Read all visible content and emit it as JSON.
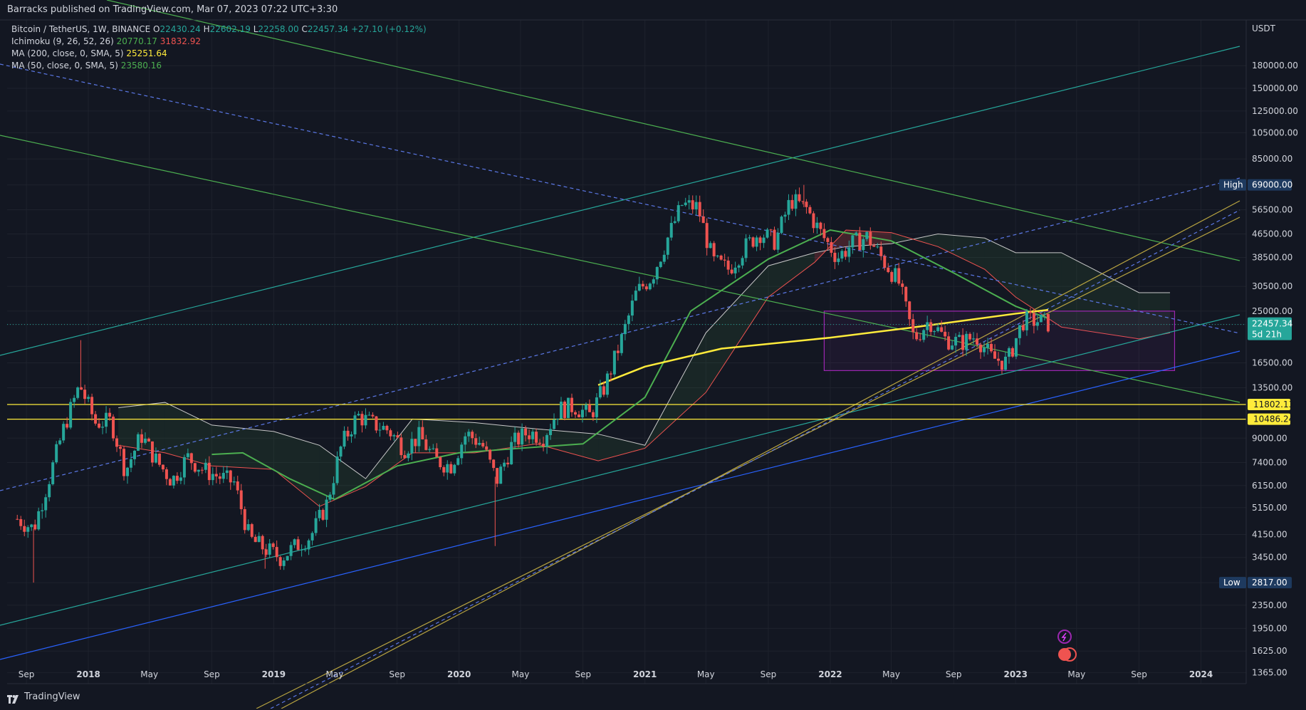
{
  "header": {
    "text": "Barracks published on TradingView.com, Mar 07, 2023 07:22 UTC+3:30"
  },
  "footer": {
    "brand": "TradingView"
  },
  "legend": {
    "symbol": "Bitcoin / TetherUS, 1W, BINANCE",
    "ohlc": {
      "o_label": "O",
      "o": "22430.24",
      "h_label": "H",
      "h": "22602.19",
      "l_label": "L",
      "l": "22258.00",
      "c_label": "C",
      "c": "22457.34",
      "chg": "+27.10 (+0.12%)"
    },
    "ichimoku": {
      "label": "Ichimoku (9, 26, 52, 26)",
      "v1": "20770.17",
      "v2": "31832.92"
    },
    "ma200": {
      "label": "MA (200, close, 0, SMA, 5)",
      "value": "25251.64"
    },
    "ma50": {
      "label": "MA (50, close, 0, SMA, 5)",
      "value": "23580.16"
    }
  },
  "colors": {
    "background": "#131722",
    "grid": "#1e222d",
    "up": "#26a69a",
    "down": "#ef5350",
    "ma200": "#ffeb3b",
    "ma50": "#4caf50",
    "text": "#d1d4dc",
    "price_tag": "#26a69a",
    "level_tag": "#ffeb3b",
    "high_low_tag": "#1e3a5f"
  },
  "chart_data": {
    "type": "candlestick",
    "scale": "log",
    "currency": "USDT",
    "ylim": [
      1250,
      260000
    ],
    "y_ticks": [
      "180000.00",
      "150000.00",
      "125000.00",
      "105000.00",
      "85000.00",
      "69000.00",
      "56500.00",
      "46500.00",
      "38500.00",
      "30500.00",
      "25000.00",
      "22457.34",
      "16500.00",
      "13500.00",
      "11802.13",
      "10486.24",
      "9000.00",
      "7400.00",
      "6150.00",
      "5150.00",
      "4150.00",
      "3450.00",
      "2817.00",
      "2350.00",
      "1950.00",
      "1625.00",
      "1365.00"
    ],
    "x_ticks": [
      "Sep",
      "2018",
      "May",
      "Sep",
      "2019",
      "May",
      "Sep",
      "2020",
      "May",
      "Sep",
      "2021",
      "May",
      "Sep",
      "2022",
      "May",
      "Sep",
      "2023",
      "May",
      "Sep",
      "2024"
    ],
    "x_tick_dates": [
      "2017-09-01",
      "2018-01-01",
      "2018-05-01",
      "2018-09-01",
      "2019-01-01",
      "2019-05-01",
      "2019-09-01",
      "2020-01-01",
      "2020-05-01",
      "2020-09-01",
      "2021-01-01",
      "2021-05-01",
      "2021-09-01",
      "2022-01-01",
      "2022-05-01",
      "2022-09-01",
      "2023-01-01",
      "2023-05-01",
      "2023-09-01",
      "2024-01-01"
    ],
    "xlim": [
      "2017-07-25",
      "2024-03-30"
    ],
    "last_price": {
      "value": "22457.34",
      "countdown": "5d 21h"
    },
    "high_marker": {
      "label": "High",
      "value": "69000.00"
    },
    "low_marker": {
      "label": "Low",
      "value": "2817.00"
    },
    "horizontal_levels": [
      "11802.13",
      "10486.24"
    ],
    "candles_monthly_close": [
      [
        "2017-08",
        4700
      ],
      [
        "2017-09",
        4340
      ],
      [
        "2017-10",
        6450
      ],
      [
        "2017-11",
        9950
      ],
      [
        "2017-12",
        13800
      ],
      [
        "2018-01",
        10200
      ],
      [
        "2018-02",
        10300
      ],
      [
        "2018-03",
        6900
      ],
      [
        "2018-04",
        9240
      ],
      [
        "2018-05",
        7500
      ],
      [
        "2018-06",
        6400
      ],
      [
        "2018-07",
        7730
      ],
      [
        "2018-08",
        7000
      ],
      [
        "2018-09",
        6600
      ],
      [
        "2018-10",
        6300
      ],
      [
        "2018-11",
        4000
      ],
      [
        "2018-12",
        3700
      ],
      [
        "2019-01",
        3440
      ],
      [
        "2019-02",
        3800
      ],
      [
        "2019-03",
        4100
      ],
      [
        "2019-04",
        5300
      ],
      [
        "2019-05",
        8570
      ],
      [
        "2019-06",
        10800
      ],
      [
        "2019-07",
        10100
      ],
      [
        "2019-08",
        9600
      ],
      [
        "2019-09",
        8300
      ],
      [
        "2019-10",
        9150
      ],
      [
        "2019-11",
        7550
      ],
      [
        "2019-12",
        7200
      ],
      [
        "2020-01",
        9350
      ],
      [
        "2020-02",
        8600
      ],
      [
        "2020-03",
        6400
      ],
      [
        "2020-04",
        8620
      ],
      [
        "2020-05",
        9450
      ],
      [
        "2020-06",
        9140
      ],
      [
        "2020-07",
        11350
      ],
      [
        "2020-08",
        11650
      ],
      [
        "2020-09",
        10780
      ],
      [
        "2020-10",
        13800
      ],
      [
        "2020-11",
        19700
      ],
      [
        "2020-12",
        29000
      ],
      [
        "2021-01",
        33100
      ],
      [
        "2021-02",
        45100
      ],
      [
        "2021-03",
        58800
      ],
      [
        "2021-04",
        57700
      ],
      [
        "2021-05",
        37300
      ],
      [
        "2021-06",
        35000
      ],
      [
        "2021-07",
        41500
      ],
      [
        "2021-08",
        47100
      ],
      [
        "2021-09",
        43800
      ],
      [
        "2021-10",
        61300
      ],
      [
        "2021-11",
        57000
      ],
      [
        "2021-12",
        46300
      ],
      [
        "2022-01",
        38500
      ],
      [
        "2022-02",
        43200
      ],
      [
        "2022-03",
        45500
      ],
      [
        "2022-04",
        37700
      ],
      [
        "2022-05",
        31800
      ],
      [
        "2022-06",
        19900
      ],
      [
        "2022-07",
        23300
      ],
      [
        "2022-08",
        20000
      ],
      [
        "2022-09",
        19400
      ],
      [
        "2022-10",
        20500
      ],
      [
        "2022-11",
        17150
      ],
      [
        "2022-12",
        16550
      ],
      [
        "2023-01",
        23100
      ],
      [
        "2023-02",
        23150
      ],
      [
        "2023-03",
        22457
      ]
    ],
    "extremes": {
      "high": [
        "2021-11-10",
        69000
      ],
      "low_2018": [
        "2018-12-15",
        3150
      ],
      "low_2020": [
        "2020-03-12",
        3780
      ],
      "first_low": [
        "2017-09-15",
        2817
      ],
      "high_2017": [
        "2017-12-17",
        19800
      ]
    },
    "ma200_points": [
      [
        "2020-10-01",
        13800
      ],
      [
        "2021-01-01",
        16000
      ],
      [
        "2021-06-01",
        18500
      ],
      [
        "2022-01-01",
        20200
      ],
      [
        "2022-06-01",
        21800
      ],
      [
        "2023-01-01",
        24500
      ],
      [
        "2023-03-06",
        25251
      ]
    ],
    "ma50_points": [
      [
        "2018-09-01",
        7900
      ],
      [
        "2018-11-01",
        8000
      ],
      [
        "2019-02-01",
        6500
      ],
      [
        "2019-05-01",
        5500
      ],
      [
        "2019-09-01",
        7200
      ],
      [
        "2020-01-01",
        8000
      ],
      [
        "2020-05-01",
        8300
      ],
      [
        "2020-09-01",
        8600
      ],
      [
        "2021-01-01",
        12500
      ],
      [
        "2021-04-01",
        25000
      ],
      [
        "2021-09-01",
        38000
      ],
      [
        "2022-01-01",
        48000
      ],
      [
        "2022-05-01",
        44000
      ],
      [
        "2022-09-01",
        34000
      ],
      [
        "2023-01-01",
        26000
      ],
      [
        "2023-03-06",
        23580
      ]
    ],
    "ichimoku_cloud": [
      [
        "2018-03-01",
        11500,
        8500
      ],
      [
        "2018-06-01",
        12000,
        8000
      ],
      [
        "2018-09-01",
        10000,
        7200
      ],
      [
        "2019-01-01",
        9500,
        7000
      ],
      [
        "2019-04-01",
        8500,
        5200
      ],
      [
        "2019-07-01",
        6500,
        6100
      ],
      [
        "2019-10-01",
        10500,
        8000
      ],
      [
        "2020-02-01",
        10200,
        8000
      ],
      [
        "2020-06-01",
        9700,
        8600
      ],
      [
        "2020-10-01",
        9300,
        7500
      ],
      [
        "2021-01-01",
        8500,
        8300
      ],
      [
        "2021-05-01",
        21000,
        13000
      ],
      [
        "2021-09-01",
        36000,
        28000
      ],
      [
        "2021-12-01",
        40000,
        37000
      ],
      [
        "2022-02-01",
        42000,
        48000
      ],
      [
        "2022-05-01",
        43000,
        47000
      ],
      [
        "2022-08-01",
        46500,
        42000
      ],
      [
        "2022-11-01",
        45000,
        35000
      ],
      [
        "2023-01-01",
        40000,
        28000
      ],
      [
        "2023-04-01",
        40000,
        22000
      ],
      [
        "2023-09-01",
        29000,
        20000
      ],
      [
        "2023-11-01",
        29000,
        21000
      ]
    ],
    "annotation_box": {
      "from": [
        "2021-12-20",
        25000
      ],
      "to": [
        "2023-11-10",
        15500
      ]
    }
  }
}
